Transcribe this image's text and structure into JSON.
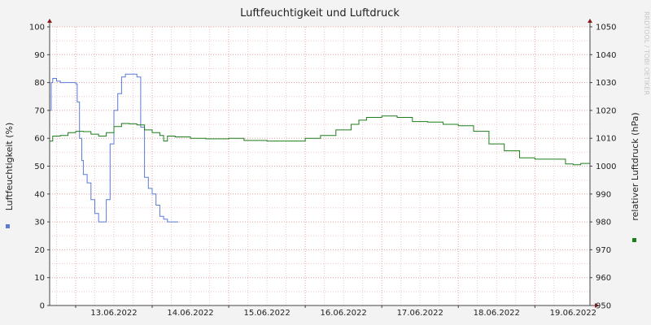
{
  "chart_data": {
    "type": "line",
    "title": "Luftfeuchtigkeit und Luftdruck",
    "watermark": "RRDTOOL / TOBI OETIKER",
    "xlabel": "",
    "ylabel": "Luftfeuchtigkeit (%)",
    "y2label": "relativer Luftdruck (hPa)",
    "ylim": [
      0,
      100
    ],
    "y2lim": [
      950,
      1050
    ],
    "xlim": [
      12.66,
      19.72
    ],
    "x_unit": "days of June 2022",
    "yticks": [
      "0",
      "10",
      "20",
      "30",
      "40",
      "50",
      "60",
      "70",
      "80",
      "90",
      "100"
    ],
    "y2ticks": [
      "950",
      "960",
      "970",
      "980",
      "990",
      "1000",
      "1010",
      "1020",
      "1030",
      "1040",
      "1050"
    ],
    "xticks": [
      {
        "x": 13.0,
        "label": "13.06.2022"
      },
      {
        "x": 14.0,
        "label": "14.06.2022"
      },
      {
        "x": 15.0,
        "label": "15.06.2022"
      },
      {
        "x": 16.0,
        "label": "16.06.2022"
      },
      {
        "x": 17.0,
        "label": "17.06.2022"
      },
      {
        "x": 18.0,
        "label": "18.06.2022"
      },
      {
        "x": 19.0,
        "label": "19.06.2022"
      }
    ],
    "grid": true,
    "series": [
      {
        "name": "",
        "axis": "left",
        "color": "#5b7bd5",
        "x": [
          12.66,
          12.68,
          12.7,
          12.75,
          12.8,
          12.9,
          13.0,
          13.02,
          13.05,
          13.08,
          13.1,
          13.15,
          13.2,
          13.25,
          13.3,
          13.35,
          13.4,
          13.45,
          13.5,
          13.55,
          13.6,
          13.65,
          13.7,
          13.75,
          13.8,
          13.85,
          13.9,
          13.95,
          14.0,
          14.05,
          14.1,
          14.15,
          14.2,
          14.25,
          14.3,
          14.34
        ],
        "y": [
          70,
          80,
          81.5,
          80.5,
          80,
          80,
          79.5,
          73,
          60,
          52,
          47,
          44,
          38,
          33,
          30,
          30,
          38,
          58,
          70,
          76,
          82,
          83,
          83,
          83,
          82,
          64,
          46,
          42,
          40,
          36,
          32,
          31,
          30,
          30,
          30,
          30
        ]
      },
      {
        "name": "",
        "axis": "right",
        "color": "#1e7e1e",
        "x": [
          12.66,
          12.7,
          12.8,
          12.9,
          13.0,
          13.1,
          13.2,
          13.3,
          13.4,
          13.5,
          13.6,
          13.7,
          13.8,
          13.9,
          14.0,
          14.1,
          14.15,
          14.2,
          14.3,
          14.5,
          14.7,
          15.0,
          15.2,
          15.5,
          15.7,
          16.0,
          16.2,
          16.4,
          16.6,
          16.7,
          16.8,
          17.0,
          17.2,
          17.4,
          17.6,
          17.8,
          18.0,
          18.2,
          18.4,
          18.6,
          18.8,
          19.0,
          19.1,
          19.2,
          19.3,
          19.4,
          19.5,
          19.6,
          19.72
        ],
        "y": [
          1009,
          1010.8,
          1011,
          1012,
          1012.5,
          1012.4,
          1011.5,
          1010.8,
          1012,
          1014.2,
          1015.3,
          1015.2,
          1014.8,
          1013,
          1012,
          1011,
          1009,
          1010.8,
          1010.5,
          1010,
          1009.8,
          1010,
          1009.2,
          1009,
          1009,
          1010,
          1011,
          1013,
          1015,
          1016.5,
          1017.5,
          1018,
          1017.5,
          1016,
          1015.8,
          1015,
          1014.5,
          1012.5,
          1008,
          1005.5,
          1003,
          1002.5,
          1002.5,
          1002.5,
          1002.5,
          1000.8,
          1000.5,
          1001,
          1001.8
        ]
      }
    ]
  }
}
